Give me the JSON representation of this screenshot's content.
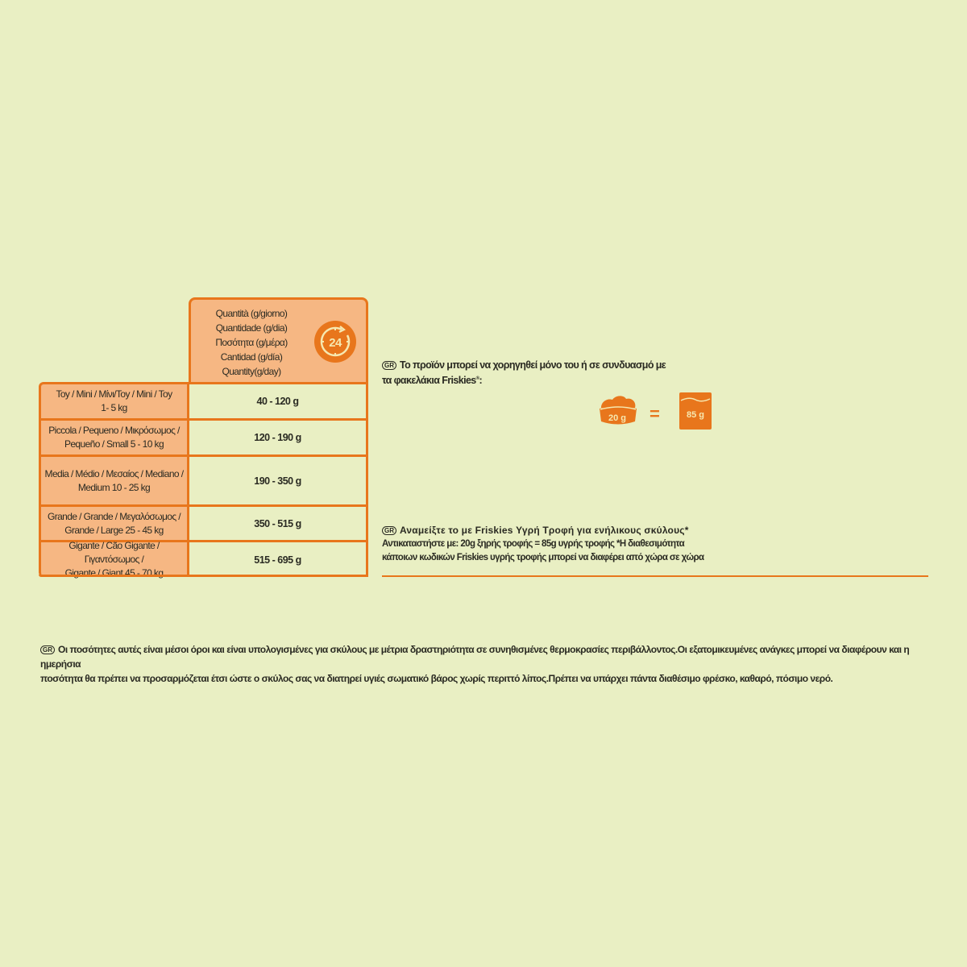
{
  "table": {
    "header": [
      "Quantità (g/giorno)",
      "Quantidade (g/dia)",
      "Ποσότητα (g/μέρα)",
      "Cantidad (g/día)",
      "Quantity(g/day)"
    ],
    "header_icon": "24-hour-clock-badge-icon",
    "header_icon_text": "24",
    "rows": [
      {
        "size": [
          "Toy / Mini / Μίνι/Toy / Mini / Toy",
          "1- 5 kg"
        ],
        "amount": "40 - 120 g"
      },
      {
        "size": [
          "Piccola / Pequeno / Μικρόσωμος /",
          "Pequeño / Small  5 - 10 kg"
        ],
        "amount": "120 - 190 g"
      },
      {
        "size": [
          "Media / Médio / Μεσαίος / Mediano /",
          "Medium  10 - 25 kg"
        ],
        "amount": "190 - 350 g"
      },
      {
        "size": [
          "Grande / Grande / Μεγαλόσωμος /",
          "Grande / Large  25 - 45 kg"
        ],
        "amount": "350 - 515 g"
      },
      {
        "size": [
          "Gigante / Cão Gigante / Γιγαντόσωμος /",
          "Gigante / Giant  45 - 70 kg"
        ],
        "amount": "515 - 695 g"
      }
    ]
  },
  "mixing": {
    "badge": "GR",
    "line1": "Το προϊόν μπορεί να χορηγηθεί μόνο του ή σε συνδυασμό με",
    "line2": "τα φακελάκια Friskies",
    "reg": "®",
    "colon": ":",
    "bowl_label": "20 g",
    "equals": "=",
    "pouch_label": "85 g"
  },
  "wet_food": {
    "badge": "GR",
    "line1": "Αναμείξτε το με Friskies Υγρή Τροφή για ενήλικους σκύλους*",
    "line2": "Αντικαταστήστε με: 20g ξηρής τροφής = 85g υγρής τροφής *Η διαθεσιμότητα",
    "line3": "κάποιων κωδικών Friskies υγρής τροφής μπορεί να διαφέρει από χώρα σε χώρα"
  },
  "footnote": {
    "badge": "GR",
    "line1": "Οι ποσότητες αυτές είναι μέσοι όροι και είναι υπολογισμένες για σκύλους με μέτρια δραστηριότητα σε συνηθισμένες θερμοκρασίες περιβάλλοντος.Οι εξατομικευμένες ανάγκες μπορεί να διαφέρουν και η ημερήσια",
    "line2": "ποσότητα θα πρέπει να προσαρμόζεται έτσι ώστε ο σκύλος σας να διατηρεί υγιές σωματικό βάρος χωρίς περιττό λίπος.Πρέπει να υπάρχει πάντα διαθέσιμο φρέσκο, καθαρό, πόσιμο νερό."
  },
  "colors": {
    "accent": "#e8761c",
    "cell_fill": "#f6b783",
    "background": "#e9efc3"
  }
}
